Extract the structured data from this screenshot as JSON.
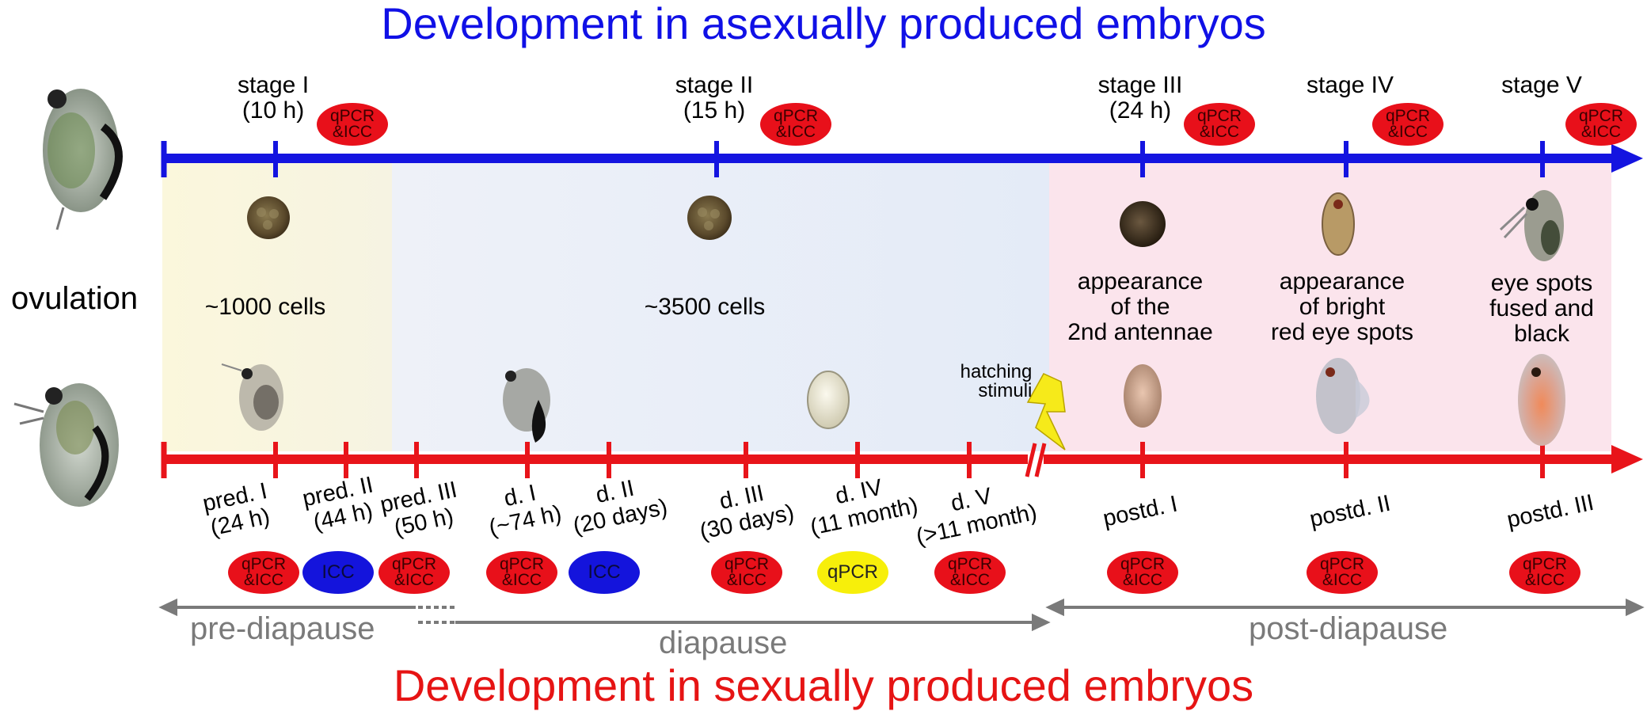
{
  "titles": {
    "top": "Development in asexually produced embryos",
    "bottom": "Development in sexually produced embryos"
  },
  "left_label": "ovulation",
  "asexual_stages": [
    {
      "name": "stage I",
      "time": "(10 h)",
      "badge": "qPCR\n&ICC"
    },
    {
      "name": "stage II",
      "time": "(15 h)",
      "badge": "qPCR\n&ICC"
    },
    {
      "name": "stage III",
      "time": "(24 h)",
      "badge": "qPCR\n&ICC"
    },
    {
      "name": "stage IV",
      "time": "",
      "badge": "qPCR\n&ICC"
    },
    {
      "name": "stage V",
      "time": "",
      "badge": "qPCR\n&ICC"
    }
  ],
  "cell_counts": {
    "stage_1": "~1000 cells",
    "stage_2": "~3500 cells"
  },
  "stage_descriptions": [
    [
      "appearance",
      "of the",
      "2nd antennae"
    ],
    [
      "appearance",
      "of bright",
      "red eye spots"
    ],
    [
      "eye spots",
      "fused and",
      "black"
    ]
  ],
  "sexual_stages": [
    {
      "name": "pred. I",
      "time": "(24 h)",
      "badge": "qPCR\n&ICC",
      "badge_type": "red"
    },
    {
      "name": "pred. II",
      "time": "(44 h)",
      "badge": "ICC",
      "badge_type": "blue"
    },
    {
      "name": "pred. III",
      "time": "(50 h)",
      "badge": "qPCR\n&ICC",
      "badge_type": "red"
    },
    {
      "name": "d. I",
      "time": "(~74 h)",
      "badge": "qPCR\n&ICC",
      "badge_type": "red"
    },
    {
      "name": "d. II",
      "time": "(20 days)",
      "badge": "ICC",
      "badge_type": "blue"
    },
    {
      "name": "d. III",
      "time": "(30 days)",
      "badge": "qPCR\n&ICC",
      "badge_type": "red"
    },
    {
      "name": "d. IV",
      "time": "(11 month)",
      "badge": "qPCR",
      "badge_type": "yellow"
    },
    {
      "name": "d. V",
      "time": "(>11 month)",
      "badge": "qPCR\n&ICC",
      "badge_type": "red"
    },
    {
      "name": "postd. I",
      "time": "",
      "badge": "qPCR\n&ICC",
      "badge_type": "red"
    },
    {
      "name": "postd. II",
      "time": "",
      "badge": "qPCR\n&ICC",
      "badge_type": "red"
    },
    {
      "name": "postd. III",
      "time": "",
      "badge": "qPCR\n&ICC",
      "badge_type": "red"
    }
  ],
  "hatching": [
    "hatching",
    "stimuli"
  ],
  "phases": {
    "pre": "pre-diapause",
    "dia": "diapause",
    "post": "post-diapause"
  },
  "colors": {
    "blue_axis": "#1414e0",
    "red_axis": "#e8141a",
    "phase_gray": "#7a7a7a",
    "pre_bg": "#fbf6dc",
    "dia_bg": "#e9eef8",
    "post_bg": "#fbe3ea"
  }
}
